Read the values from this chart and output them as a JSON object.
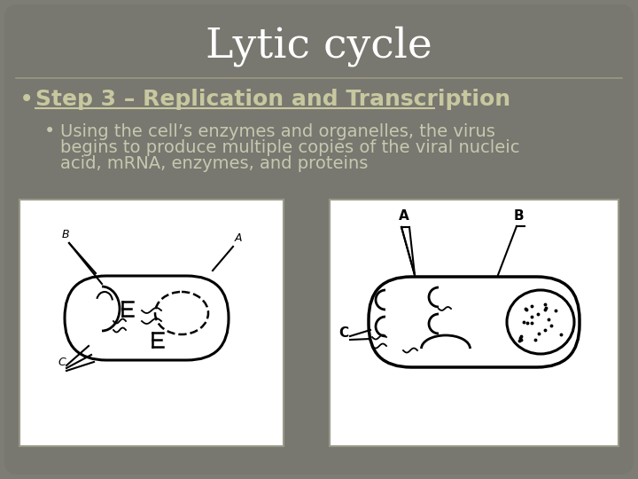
{
  "title": "Lytic cycle",
  "title_color": "#ffffff",
  "title_fontsize": 34,
  "slide_bg": "#7d7d75",
  "bullet1_text": "Step 3 – Replication and Transcription",
  "bullet1_color": "#c8c8a0",
  "bullet1_fontsize": 18,
  "bullet2_lines": [
    "Using the cell’s enzymes and organelles, the virus",
    "begins to produce multiple copies of the viral nucleic",
    "acid, mRNA, enzymes, and proteins"
  ],
  "bullet2_color": "#c8c8b0",
  "bullet2_fontsize": 14,
  "separator_color": "#999980",
  "image_bg": "#ffffff",
  "image_border_color": "#aaaaaa"
}
